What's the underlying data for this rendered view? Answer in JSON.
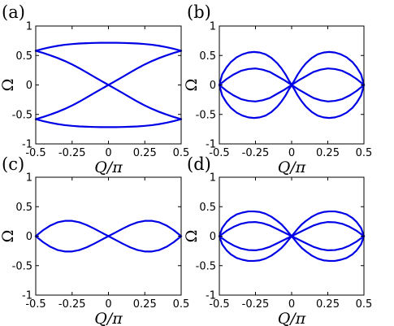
{
  "chart_data": [
    {
      "panel": "(a)",
      "type": "line",
      "xlabel": "Q/π",
      "ylabel": "Ω",
      "xlim": [
        -0.5,
        0.5
      ],
      "ylim": [
        -1,
        1
      ],
      "xticks": [
        "-0.5",
        "-0.25",
        "0",
        "0.25",
        "0.5"
      ],
      "yticks": [
        "1",
        "0.5",
        "0",
        "-0.5",
        "-1"
      ],
      "grid": false,
      "series": [
        {
          "x": [
            -0.5,
            -0.45,
            -0.4,
            -0.35,
            -0.3,
            -0.25,
            -0.2,
            -0.15,
            -0.1,
            -0.05,
            0,
            0.05,
            0.1,
            0.15,
            0.2,
            0.25,
            0.3,
            0.35,
            0.4,
            0.45,
            0.5
          ],
          "y": [
            0.58,
            0.613,
            0.641,
            0.664,
            0.682,
            0.694,
            0.703,
            0.709,
            0.713,
            0.715,
            0.715,
            0.715,
            0.713,
            0.709,
            0.703,
            0.694,
            0.682,
            0.664,
            0.641,
            0.613,
            0.58
          ]
        },
        {
          "x": [
            -0.5,
            -0.45,
            -0.4,
            -0.35,
            -0.3,
            -0.25,
            -0.2,
            -0.15,
            -0.1,
            -0.05,
            0,
            0.05,
            0.1,
            0.15,
            0.2,
            0.25,
            0.3,
            0.35,
            0.4,
            0.45,
            0.5
          ],
          "y": [
            -0.58,
            -0.613,
            -0.641,
            -0.664,
            -0.682,
            -0.694,
            -0.703,
            -0.709,
            -0.713,
            -0.715,
            -0.715,
            -0.715,
            -0.713,
            -0.709,
            -0.703,
            -0.694,
            -0.682,
            -0.664,
            -0.641,
            -0.613,
            -0.58
          ]
        },
        {
          "x": [
            -0.5,
            -0.45,
            -0.4,
            -0.35,
            -0.3,
            -0.25,
            -0.2,
            -0.15,
            -0.1,
            -0.05,
            0,
            0.05,
            0.1,
            0.15,
            0.2,
            0.25,
            0.3,
            0.35,
            0.4,
            0.45,
            0.5
          ],
          "y": [
            0.58,
            0.544,
            0.503,
            0.458,
            0.406,
            0.349,
            0.283,
            0.213,
            0.141,
            0.07,
            0,
            -0.07,
            -0.141,
            -0.213,
            -0.283,
            -0.349,
            -0.406,
            -0.458,
            -0.503,
            -0.544,
            -0.58
          ]
        },
        {
          "x": [
            -0.5,
            -0.45,
            -0.4,
            -0.35,
            -0.3,
            -0.25,
            -0.2,
            -0.15,
            -0.1,
            -0.05,
            0,
            0.05,
            0.1,
            0.15,
            0.2,
            0.25,
            0.3,
            0.35,
            0.4,
            0.45,
            0.5
          ],
          "y": [
            -0.58,
            -0.544,
            -0.503,
            -0.458,
            -0.406,
            -0.349,
            -0.283,
            -0.213,
            -0.141,
            -0.07,
            0,
            0.07,
            0.141,
            0.213,
            0.283,
            0.349,
            0.406,
            0.458,
            0.503,
            0.544,
            0.58
          ]
        }
      ]
    },
    {
      "panel": "(b)",
      "type": "line",
      "xlabel": "Q/π",
      "ylabel": "Ω",
      "xlim": [
        -0.5,
        0.5
      ],
      "ylim": [
        -1,
        1
      ],
      "xticks": [
        "-0.5",
        "-0.25",
        "0",
        "0.25",
        "0.5"
      ],
      "yticks": [
        "1",
        "0.5",
        "0",
        "-0.5",
        "-1"
      ],
      "grid": false,
      "series": [
        {
          "x": [
            -0.5,
            -0.48,
            -0.45,
            -0.42,
            -0.38,
            -0.34,
            -0.3,
            -0.26,
            -0.22,
            -0.18,
            -0.14,
            -0.1,
            -0.07,
            -0.04,
            -0.02,
            0
          ],
          "y": [
            0,
            0.18,
            0.3,
            0.39,
            0.47,
            0.52,
            0.55,
            0.56,
            0.55,
            0.52,
            0.46,
            0.37,
            0.28,
            0.17,
            0.08,
            0
          ]
        },
        {
          "x": [
            0,
            0.02,
            0.04,
            0.07,
            0.1,
            0.14,
            0.18,
            0.22,
            0.26,
            0.3,
            0.34,
            0.38,
            0.42,
            0.45,
            0.48,
            0.5
          ],
          "y": [
            0,
            0.08,
            0.17,
            0.28,
            0.37,
            0.46,
            0.52,
            0.55,
            0.56,
            0.55,
            0.52,
            0.47,
            0.39,
            0.3,
            0.18,
            0
          ]
        },
        {
          "x": [
            -0.5,
            -0.48,
            -0.45,
            -0.42,
            -0.38,
            -0.34,
            -0.3,
            -0.26,
            -0.22,
            -0.18,
            -0.14,
            -0.1,
            -0.07,
            -0.04,
            -0.02,
            0
          ],
          "y": [
            0,
            -0.18,
            -0.3,
            -0.39,
            -0.47,
            -0.52,
            -0.55,
            -0.56,
            -0.55,
            -0.52,
            -0.46,
            -0.37,
            -0.28,
            -0.17,
            -0.08,
            0
          ]
        },
        {
          "x": [
            0,
            0.02,
            0.04,
            0.07,
            0.1,
            0.14,
            0.18,
            0.22,
            0.26,
            0.3,
            0.34,
            0.38,
            0.42,
            0.45,
            0.48,
            0.5
          ],
          "y": [
            0,
            -0.08,
            -0.17,
            -0.28,
            -0.37,
            -0.46,
            -0.52,
            -0.55,
            -0.56,
            -0.55,
            -0.52,
            -0.47,
            -0.39,
            -0.3,
            -0.18,
            0
          ]
        },
        {
          "x": [
            -0.5,
            -0.45,
            -0.4,
            -0.35,
            -0.3,
            -0.25,
            -0.2,
            -0.15,
            -0.1,
            -0.05,
            0,
            0.05,
            0.1,
            0.15,
            0.2,
            0.25,
            0.3,
            0.35,
            0.4,
            0.45,
            0.5
          ],
          "y": [
            0,
            0.1,
            0.18,
            0.24,
            0.27,
            0.28,
            0.26,
            0.22,
            0.15,
            0.08,
            0,
            0.08,
            0.15,
            0.22,
            0.26,
            0.28,
            0.27,
            0.24,
            0.18,
            0.1,
            0
          ]
        },
        {
          "x": [
            -0.5,
            -0.45,
            -0.4,
            -0.35,
            -0.3,
            -0.25,
            -0.2,
            -0.15,
            -0.1,
            -0.05,
            0,
            0.05,
            0.1,
            0.15,
            0.2,
            0.25,
            0.3,
            0.35,
            0.4,
            0.45,
            0.5
          ],
          "y": [
            0,
            -0.1,
            -0.18,
            -0.24,
            -0.27,
            -0.28,
            -0.26,
            -0.22,
            -0.15,
            -0.08,
            0,
            -0.08,
            -0.15,
            -0.22,
            -0.26,
            -0.28,
            -0.27,
            -0.24,
            -0.18,
            -0.1,
            0
          ]
        }
      ]
    },
    {
      "panel": "(c)",
      "type": "line",
      "xlabel": "Q/π",
      "ylabel": "Ω",
      "xlim": [
        -0.5,
        0.5
      ],
      "ylim": [
        -1,
        1
      ],
      "xticks": [
        "-0.5",
        "-0.25",
        "0",
        "0.25",
        "0.5"
      ],
      "yticks": [
        "1",
        "0.5",
        "0",
        "-0.5",
        "-1"
      ],
      "grid": false,
      "series": [
        {
          "x": [
            -0.5,
            -0.45,
            -0.4,
            -0.35,
            -0.3,
            -0.25,
            -0.2,
            -0.15,
            -0.1,
            -0.05,
            0,
            0.05,
            0.1,
            0.15,
            0.2,
            0.25,
            0.3,
            0.35,
            0.4,
            0.45,
            0.5
          ],
          "y": [
            0,
            0.1,
            0.18,
            0.235,
            0.26,
            0.26,
            0.235,
            0.19,
            0.13,
            0.065,
            0,
            0.065,
            0.13,
            0.19,
            0.235,
            0.26,
            0.26,
            0.235,
            0.18,
            0.1,
            0
          ]
        },
        {
          "x": [
            -0.5,
            -0.45,
            -0.4,
            -0.35,
            -0.3,
            -0.25,
            -0.2,
            -0.15,
            -0.1,
            -0.05,
            0,
            0.05,
            0.1,
            0.15,
            0.2,
            0.25,
            0.3,
            0.35,
            0.4,
            0.45,
            0.5
          ],
          "y": [
            0,
            -0.1,
            -0.18,
            -0.235,
            -0.26,
            -0.26,
            -0.235,
            -0.19,
            -0.13,
            -0.065,
            0,
            -0.065,
            -0.13,
            -0.19,
            -0.235,
            -0.26,
            -0.26,
            -0.235,
            -0.18,
            -0.1,
            0
          ]
        }
      ]
    },
    {
      "panel": "(d)",
      "type": "line",
      "xlabel": "Q/π",
      "ylabel": "Ω",
      "xlim": [
        -0.5,
        0.5
      ],
      "ylim": [
        -1,
        1
      ],
      "xticks": [
        "-0.5",
        "-0.25",
        "0",
        "0.25",
        "0.5"
      ],
      "yticks": [
        "1",
        "0.5",
        "0",
        "-0.5",
        "-1"
      ],
      "grid": false,
      "series": [
        {
          "x": [
            -0.5,
            -0.48,
            -0.45,
            -0.42,
            -0.38,
            -0.34,
            -0.3,
            -0.26,
            -0.22,
            -0.18,
            -0.14,
            -0.1,
            -0.07,
            -0.04,
            -0.02,
            0
          ],
          "y": [
            0,
            0.14,
            0.24,
            0.31,
            0.37,
            0.4,
            0.42,
            0.42,
            0.41,
            0.38,
            0.33,
            0.26,
            0.2,
            0.12,
            0.06,
            0
          ]
        },
        {
          "x": [
            0,
            0.02,
            0.04,
            0.07,
            0.1,
            0.14,
            0.18,
            0.22,
            0.26,
            0.3,
            0.34,
            0.38,
            0.42,
            0.45,
            0.48,
            0.5
          ],
          "y": [
            0,
            0.06,
            0.12,
            0.2,
            0.26,
            0.33,
            0.38,
            0.41,
            0.42,
            0.42,
            0.4,
            0.37,
            0.31,
            0.24,
            0.14,
            0
          ]
        },
        {
          "x": [
            -0.5,
            -0.48,
            -0.45,
            -0.42,
            -0.38,
            -0.34,
            -0.3,
            -0.26,
            -0.22,
            -0.18,
            -0.14,
            -0.1,
            -0.07,
            -0.04,
            -0.02,
            0
          ],
          "y": [
            0,
            -0.14,
            -0.24,
            -0.31,
            -0.37,
            -0.4,
            -0.42,
            -0.42,
            -0.41,
            -0.38,
            -0.33,
            -0.26,
            -0.2,
            -0.12,
            -0.06,
            0
          ]
        },
        {
          "x": [
            0,
            0.02,
            0.04,
            0.07,
            0.1,
            0.14,
            0.18,
            0.22,
            0.26,
            0.3,
            0.34,
            0.38,
            0.42,
            0.45,
            0.48,
            0.5
          ],
          "y": [
            0,
            -0.06,
            -0.12,
            -0.2,
            -0.26,
            -0.33,
            -0.38,
            -0.41,
            -0.42,
            -0.42,
            -0.4,
            -0.37,
            -0.31,
            -0.24,
            -0.14,
            0
          ]
        },
        {
          "x": [
            -0.5,
            -0.45,
            -0.4,
            -0.35,
            -0.3,
            -0.25,
            -0.2,
            -0.15,
            -0.1,
            -0.05,
            0,
            0.05,
            0.1,
            0.15,
            0.2,
            0.25,
            0.3,
            0.35,
            0.4,
            0.45,
            0.5
          ],
          "y": [
            0,
            0.09,
            0.16,
            0.21,
            0.235,
            0.24,
            0.22,
            0.18,
            0.12,
            0.06,
            0,
            0.06,
            0.12,
            0.18,
            0.22,
            0.24,
            0.235,
            0.21,
            0.16,
            0.09,
            0
          ]
        },
        {
          "x": [
            -0.5,
            -0.45,
            -0.4,
            -0.35,
            -0.3,
            -0.25,
            -0.2,
            -0.15,
            -0.1,
            -0.05,
            0,
            0.05,
            0.1,
            0.15,
            0.2,
            0.25,
            0.3,
            0.35,
            0.4,
            0.45,
            0.5
          ],
          "y": [
            0,
            -0.09,
            -0.16,
            -0.21,
            -0.235,
            -0.24,
            -0.22,
            -0.18,
            -0.12,
            -0.06,
            0,
            -0.06,
            -0.12,
            -0.18,
            -0.22,
            -0.24,
            -0.235,
            -0.21,
            -0.16,
            -0.09,
            0
          ]
        }
      ]
    }
  ],
  "colors": {
    "line": "#0000e6",
    "axes": "#000000"
  }
}
